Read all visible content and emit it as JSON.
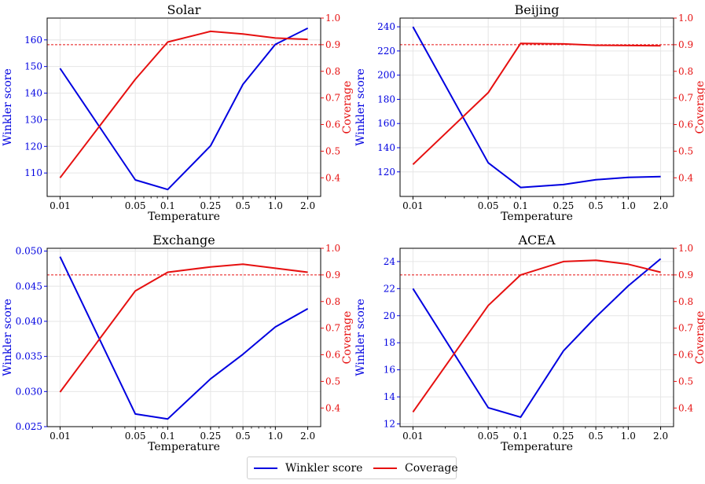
{
  "legend": {
    "winkler_label": "Winkler score",
    "coverage_label": "Coverage"
  },
  "colors": {
    "winkler": "#0000e0",
    "coverage": "#e61010",
    "target": "#e61010"
  },
  "chart_data": [
    {
      "type": "line",
      "title": "Solar",
      "xlabel": "Temperature",
      "ylabel_left": "Winkler score",
      "ylabel_right": "Coverage",
      "x": [
        0.01,
        0.05,
        0.1,
        0.25,
        0.5,
        1.0,
        2.0
      ],
      "x_tick_labels": [
        "0.01",
        "0.05",
        "0.1",
        "0.25",
        "0.5",
        "1.0",
        "2.0"
      ],
      "ylim_left": [
        101.2,
        168.2
      ],
      "yticks_left": [
        110,
        120,
        130,
        140,
        150,
        160
      ],
      "ylim_right": [
        0.33,
        1.0
      ],
      "yticks_right": [
        0.4,
        0.5,
        0.6,
        0.7,
        0.8,
        0.9,
        1.0
      ],
      "target_coverage": 0.9,
      "series": [
        {
          "name": "Winkler score",
          "axis": "left",
          "values": [
            149.3,
            107.4,
            103.8,
            120.2,
            143.3,
            158.3,
            164.4
          ]
        },
        {
          "name": "Coverage",
          "axis": "right",
          "values": [
            0.4,
            0.77,
            0.91,
            0.95,
            0.94,
            0.925,
            0.92
          ]
        }
      ],
      "grid": true
    },
    {
      "type": "line",
      "title": "Beijing",
      "xlabel": "Temperature",
      "ylabel_left": "Winkler score",
      "ylabel_right": "Coverage",
      "x": [
        0.01,
        0.05,
        0.1,
        0.25,
        0.5,
        1.0,
        2.0
      ],
      "x_tick_labels": [
        "0.01",
        "0.05",
        "0.1",
        "0.25",
        "0.5",
        "1.0",
        "2.0"
      ],
      "ylim_left": [
        99.7,
        247.2
      ],
      "yticks_left": [
        120,
        140,
        160,
        180,
        200,
        220,
        240
      ],
      "ylim_right": [
        0.33,
        1.0
      ],
      "yticks_right": [
        0.4,
        0.5,
        0.6,
        0.7,
        0.8,
        0.9,
        1.0
      ],
      "target_coverage": 0.9,
      "series": [
        {
          "name": "Winkler score",
          "axis": "left",
          "values": [
            240.0,
            127.5,
            107.1,
            109.5,
            113.5,
            115.5,
            116.1
          ]
        },
        {
          "name": "Coverage",
          "axis": "right",
          "values": [
            0.45,
            0.72,
            0.905,
            0.903,
            0.898,
            0.897,
            0.896
          ]
        }
      ],
      "grid": true
    },
    {
      "type": "line",
      "title": "Exchange",
      "xlabel": "Temperature",
      "ylabel_left": "Winkler score",
      "ylabel_right": "Coverage",
      "x": [
        0.01,
        0.05,
        0.1,
        0.25,
        0.5,
        1.0,
        2.0
      ],
      "x_tick_labels": [
        "0.01",
        "0.05",
        "0.1",
        "0.25",
        "0.5",
        "1.0",
        "2.0"
      ],
      "ylim_left": [
        0.025,
        0.0504
      ],
      "yticks_left": [
        0.025,
        0.03,
        0.035,
        0.04,
        0.045,
        0.05
      ],
      "ytick_labels_left": [
        "0.025",
        "0.030",
        "0.035",
        "0.040",
        "0.045",
        "0.050"
      ],
      "ylim_right": [
        0.33,
        1.0
      ],
      "yticks_right": [
        0.4,
        0.5,
        0.6,
        0.7,
        0.8,
        0.9,
        1.0
      ],
      "target_coverage": 0.9,
      "series": [
        {
          "name": "Winkler score",
          "axis": "left",
          "values": [
            0.0492,
            0.0268,
            0.0261,
            0.0318,
            0.0353,
            0.0392,
            0.0418
          ]
        },
        {
          "name": "Coverage",
          "axis": "right",
          "values": [
            0.46,
            0.84,
            0.91,
            0.93,
            0.94,
            0.925,
            0.91
          ]
        }
      ],
      "grid": true
    },
    {
      "type": "line",
      "title": "ACEA",
      "xlabel": "Temperature",
      "ylabel_left": "Winkler score",
      "ylabel_right": "Coverage",
      "x": [
        0.01,
        0.05,
        0.1,
        0.25,
        0.5,
        1.0,
        2.0
      ],
      "x_tick_labels": [
        "0.01",
        "0.05",
        "0.1",
        "0.25",
        "0.5",
        "1.0",
        "2.0"
      ],
      "ylim_left": [
        11.8,
        24.98
      ],
      "yticks_left": [
        12,
        14,
        16,
        18,
        20,
        22,
        24
      ],
      "ylim_right": [
        0.33,
        1.0
      ],
      "yticks_right": [
        0.4,
        0.5,
        0.6,
        0.7,
        0.8,
        0.9,
        1.0
      ],
      "target_coverage": 0.9,
      "series": [
        {
          "name": "Winkler score",
          "axis": "left",
          "values": [
            22.0,
            13.2,
            12.5,
            17.4,
            19.9,
            22.2,
            24.2
          ]
        },
        {
          "name": "Coverage",
          "axis": "right",
          "values": [
            0.385,
            0.785,
            0.9,
            0.95,
            0.955,
            0.94,
            0.91
          ]
        }
      ],
      "grid": true
    }
  ]
}
